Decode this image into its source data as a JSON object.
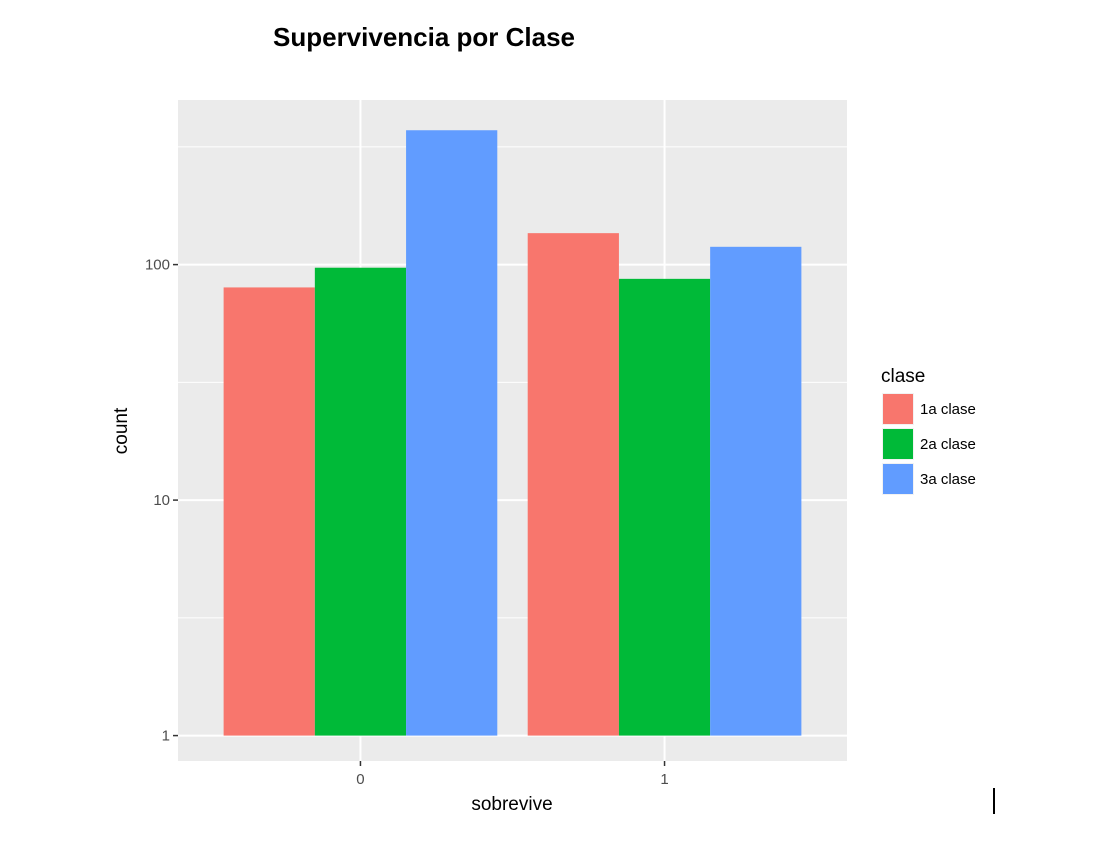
{
  "chart_data": {
    "type": "bar",
    "title": "Supervivencia por Clase",
    "xlabel": "sobrevive",
    "ylabel": "count",
    "categories": [
      "0",
      "1"
    ],
    "y_scale": "log10",
    "ylim": [
      0.78,
      500
    ],
    "yticks": [
      1,
      10,
      100
    ],
    "ytick_labels": [
      "1",
      "10",
      "100"
    ],
    "baseline": 1,
    "grid": true,
    "legend": {
      "title": "clase",
      "position": "right"
    },
    "series": [
      {
        "name": "1a clase",
        "color": "#F8766D",
        "values": [
          80,
          136
        ]
      },
      {
        "name": "2a clase",
        "color": "#00BA38",
        "values": [
          97,
          87
        ]
      },
      {
        "name": "3a clase",
        "color": "#619CFF",
        "values": [
          372,
          119
        ]
      }
    ]
  }
}
